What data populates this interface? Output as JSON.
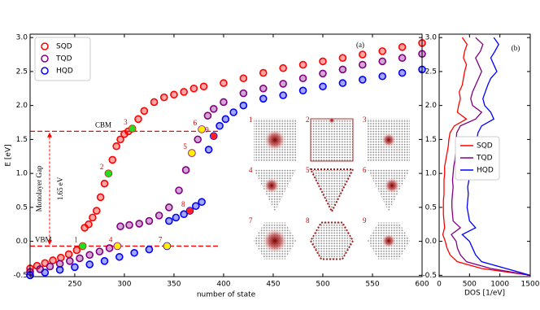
{
  "chart_data": [
    {
      "type": "scatter",
      "panel_label": "(a)",
      "x_label": "number of state",
      "y_label": "E [eV]",
      "xlim": [
        205,
        600
      ],
      "xticks": [
        250,
        300,
        350,
        400,
        450,
        500,
        550,
        600
      ],
      "ylim": [
        -0.52,
        3.05
      ],
      "yticks": [
        {
          "value": -0.5,
          "label": "-0.5"
        },
        {
          "value": 0,
          "label": "0.0"
        },
        {
          "value": 0.5,
          "label": "0.5"
        },
        {
          "value": 1,
          "label": "1.0"
        },
        {
          "value": 1.5,
          "label": "1.5"
        },
        {
          "value": 2,
          "label": "2.0"
        },
        {
          "value": 2.5,
          "label": "2.5"
        },
        {
          "value": 3,
          "label": "3.0"
        }
      ],
      "legend": "upper left",
      "series": [
        {
          "name": "SQD",
          "color": "#ff0000",
          "x": [
            205,
            212,
            220,
            228,
            236,
            244,
            252,
            258,
            260,
            264,
            268,
            272,
            276,
            280,
            284,
            288,
            292,
            296,
            300,
            304,
            308,
            314,
            320,
            330,
            340,
            350,
            360,
            370,
            380,
            400,
            420,
            440,
            460,
            480,
            500,
            520,
            540,
            560,
            580,
            600
          ],
          "values": [
            -0.4,
            -0.36,
            -0.32,
            -0.28,
            -0.24,
            -0.19,
            -0.13,
            -0.07,
            0.2,
            0.25,
            0.35,
            0.45,
            0.65,
            0.85,
            1.0,
            1.2,
            1.4,
            1.5,
            1.58,
            1.62,
            1.66,
            1.8,
            1.92,
            2.05,
            2.12,
            2.16,
            2.2,
            2.25,
            2.28,
            2.33,
            2.4,
            2.48,
            2.55,
            2.6,
            2.65,
            2.7,
            2.75,
            2.8,
            2.86,
            2.92
          ]
        },
        {
          "name": "TQD",
          "color": "#800080",
          "x": [
            205,
            215,
            225,
            235,
            245,
            255,
            265,
            275,
            285,
            293,
            296,
            305,
            315,
            325,
            335,
            345,
            355,
            362,
            368,
            374,
            378,
            384,
            390,
            400,
            420,
            440,
            460,
            480,
            500,
            520,
            540,
            560,
            580,
            600
          ],
          "values": [
            -0.45,
            -0.41,
            -0.37,
            -0.33,
            -0.29,
            -0.25,
            -0.2,
            -0.15,
            -0.1,
            -0.07,
            0.22,
            0.24,
            0.26,
            0.3,
            0.38,
            0.5,
            0.75,
            1.05,
            1.3,
            1.5,
            1.65,
            1.85,
            1.95,
            2.05,
            2.18,
            2.25,
            2.32,
            2.4,
            2.47,
            2.53,
            2.6,
            2.65,
            2.7,
            2.76
          ]
        },
        {
          "name": "HQD",
          "color": "#0000ff",
          "x": [
            205,
            220,
            235,
            250,
            265,
            280,
            295,
            310,
            325,
            343,
            345,
            352,
            360,
            366,
            372,
            378,
            385,
            390,
            396,
            402,
            410,
            420,
            440,
            460,
            480,
            500,
            520,
            540,
            560,
            580,
            600
          ],
          "values": [
            -0.5,
            -0.46,
            -0.42,
            -0.38,
            -0.34,
            -0.29,
            -0.23,
            -0.17,
            -0.12,
            -0.07,
            0.3,
            0.35,
            0.4,
            0.45,
            0.52,
            0.58,
            1.35,
            1.55,
            1.7,
            1.8,
            1.9,
            2.0,
            2.1,
            2.15,
            2.22,
            2.28,
            2.33,
            2.38,
            2.43,
            2.48,
            2.53
          ]
        }
      ],
      "highlights": [
        {
          "label": "1",
          "x": 258,
          "y": -0.07,
          "color": "#22dd22"
        },
        {
          "label": "2",
          "x": 284,
          "y": 1.0,
          "color": "#22dd22"
        },
        {
          "label": "3",
          "x": 308,
          "y": 1.66,
          "color": "#22dd22"
        },
        {
          "label": "4",
          "x": 293,
          "y": -0.07,
          "color": "#ffee00"
        },
        {
          "label": "5",
          "x": 368,
          "y": 1.3,
          "color": "#ffee00"
        },
        {
          "label": "6",
          "x": 378,
          "y": 1.65,
          "color": "#ffee00"
        },
        {
          "label": "7",
          "x": 343,
          "y": -0.07,
          "color": "#ffee00"
        },
        {
          "label": "8",
          "x": 366,
          "y": 0.45,
          "color": "#ff2222"
        },
        {
          "label": "9",
          "x": 390,
          "y": 1.55,
          "color": "#ff2222"
        }
      ],
      "hlines": [
        {
          "y": 1.62,
          "label": "CBM"
        },
        {
          "y": -0.07,
          "label": "VBM"
        }
      ],
      "gap_label": "Monolayer Gap",
      "gap_value_label": "1.65 eV",
      "inset_labels": [
        "1",
        "2",
        "3",
        "4",
        "5",
        "6",
        "7",
        "8",
        "9"
      ]
    },
    {
      "type": "line",
      "panel_label": "(b)",
      "x_label": "DOS [1/eV]",
      "xlim": [
        0,
        1500
      ],
      "xticks": [
        0,
        500,
        1000,
        1500
      ],
      "ylim": [
        -0.52,
        3.05
      ],
      "yticks": [
        {
          "value": -0.5,
          "label": "-0.5"
        },
        {
          "value": 0,
          "label": "0.0"
        },
        {
          "value": 0.5,
          "label": "0.5"
        },
        {
          "value": 1,
          "label": "1.0"
        },
        {
          "value": 1.5,
          "label": "1.5"
        },
        {
          "value": 2,
          "label": "2.0"
        },
        {
          "value": 2.5,
          "label": "2.5"
        },
        {
          "value": 3,
          "label": "3.0"
        }
      ],
      "legend": "center right",
      "y": [
        -0.5,
        -0.4,
        -0.3,
        -0.2,
        -0.1,
        0.0,
        0.1,
        0.2,
        0.3,
        0.4,
        0.5,
        0.6,
        0.7,
        0.8,
        0.9,
        1.0,
        1.1,
        1.2,
        1.3,
        1.4,
        1.5,
        1.6,
        1.7,
        1.8,
        1.9,
        2.0,
        2.1,
        2.2,
        2.3,
        2.4,
        2.5,
        2.6,
        2.7,
        2.8,
        2.9,
        3.0
      ],
      "series": [
        {
          "name": "SQD",
          "color": "#ff0000",
          "values": [
            1500,
            700,
            300,
            180,
            130,
            100,
            60,
            90,
            80,
            70,
            70,
            70,
            80,
            80,
            80,
            90,
            90,
            110,
            130,
            150,
            160,
            180,
            250,
            450,
            300,
            320,
            350,
            330,
            380,
            400,
            420,
            450,
            400,
            420,
            460,
            380
          ]
        },
        {
          "name": "TQD",
          "color": "#800080",
          "values": [
            1500,
            850,
            450,
            350,
            300,
            280,
            200,
            350,
            230,
            220,
            210,
            210,
            220,
            230,
            220,
            230,
            240,
            260,
            270,
            280,
            280,
            290,
            350,
            600,
            700,
            550,
            520,
            550,
            600,
            650,
            700,
            650,
            600,
            680,
            720,
            600
          ]
        },
        {
          "name": "HQD",
          "color": "#0000ff",
          "values": [
            1500,
            1100,
            700,
            600,
            550,
            500,
            380,
            600,
            500,
            480,
            460,
            470,
            480,
            470,
            490,
            500,
            520,
            550,
            580,
            600,
            620,
            640,
            700,
            900,
            850,
            750,
            720,
            760,
            800,
            850,
            950,
            900,
            850,
            920,
            980,
            900
          ]
        }
      ]
    }
  ]
}
